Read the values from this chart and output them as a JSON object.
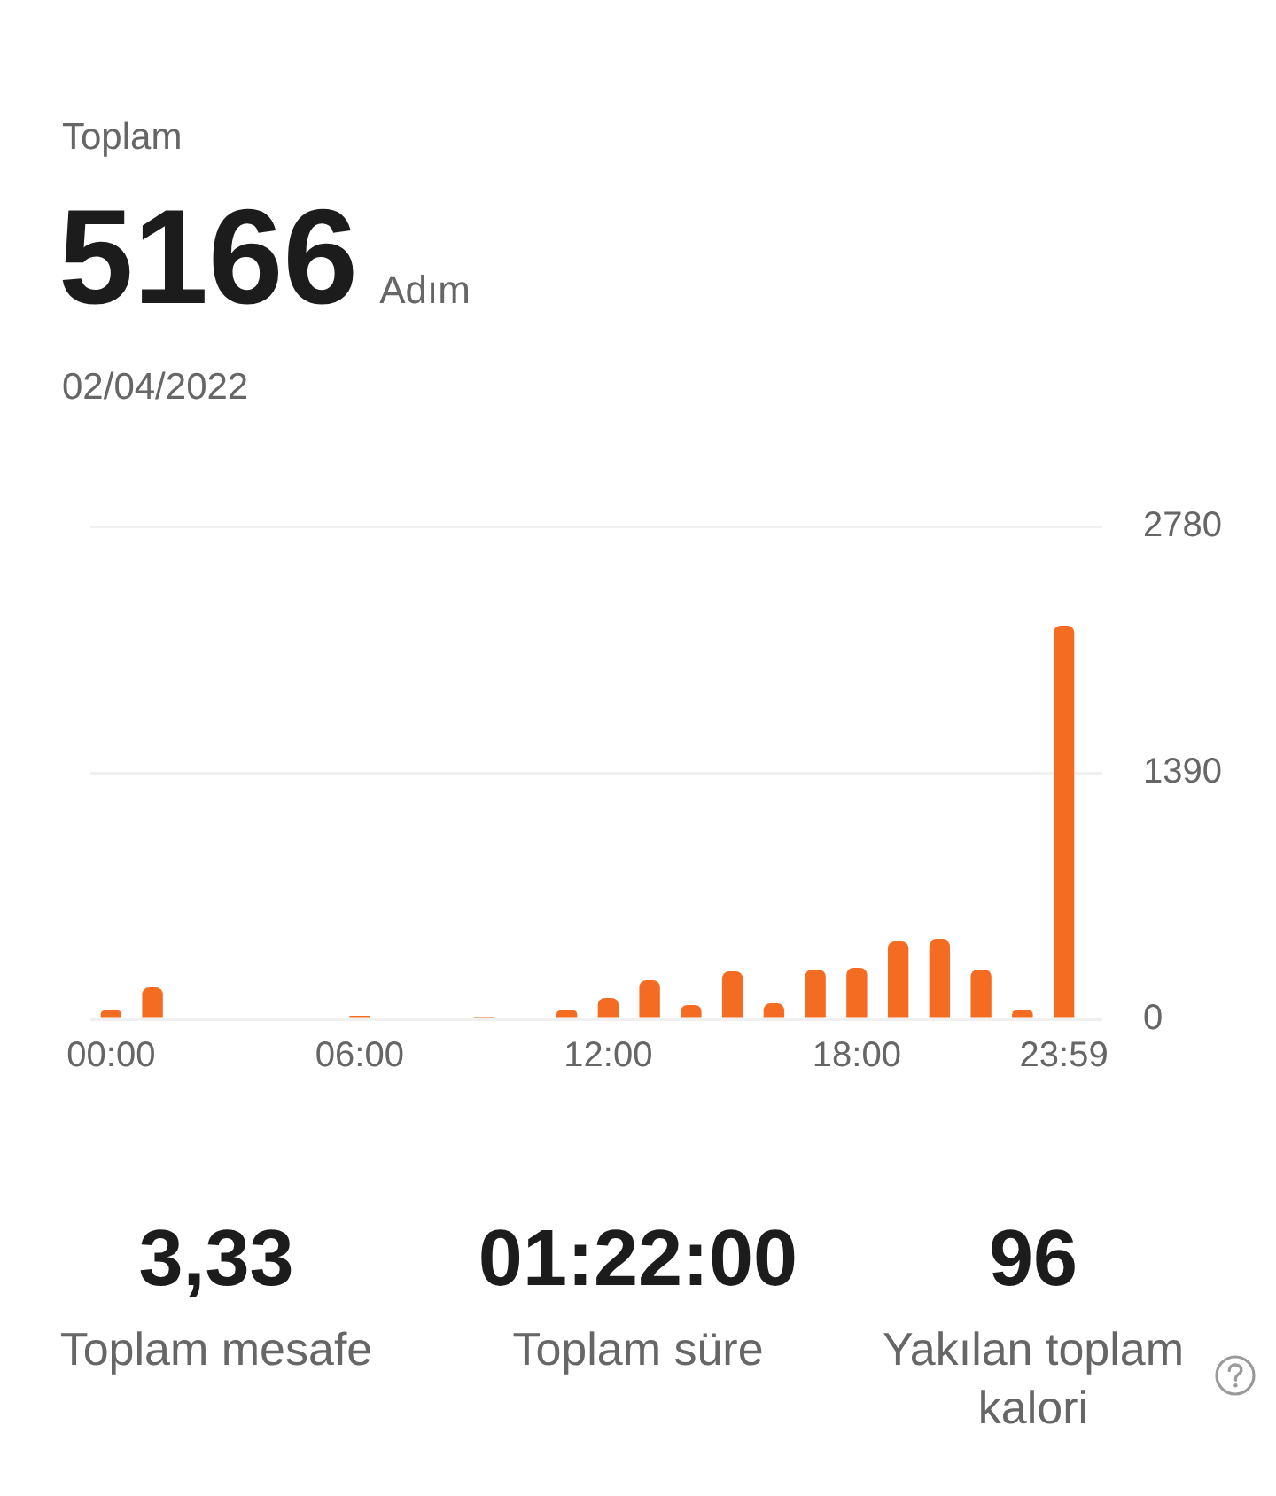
{
  "chart_data": {
    "type": "bar",
    "title": "Toplam",
    "subtitle": "02/04/2022",
    "annotations": [
      "5166",
      "Adım",
      "3,33",
      "Toplam mesafe",
      "01:22:00",
      "Toplam süre",
      "96",
      "Yakılan toplam kalori"
    ],
    "categories": [
      "00:00",
      null,
      null,
      null,
      null,
      null,
      "06:00",
      null,
      null,
      null,
      null,
      null,
      "12:00",
      null,
      null,
      null,
      null,
      null,
      "18:00",
      null,
      null,
      null,
      null,
      "23:59"
    ],
    "values": [
      50,
      180,
      0,
      0,
      0,
      0,
      20,
      0,
      0,
      10,
      0,
      50,
      120,
      220,
      80,
      270,
      90,
      280,
      290,
      440,
      450,
      280,
      50,
      2220
    ],
    "color": "#f36c21",
    "ylim": [
      0,
      2780
    ],
    "yticks": [
      0,
      1390,
      2780
    ],
    "grid": "y"
  }
}
